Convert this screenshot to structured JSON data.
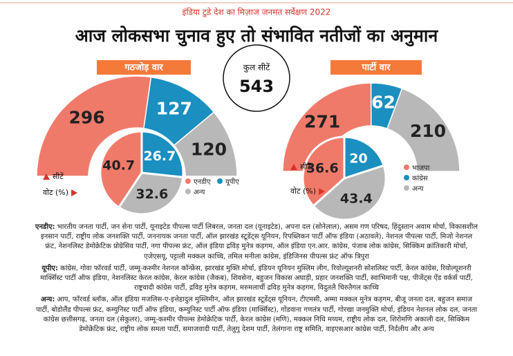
{
  "header": {
    "kicker": "इंडिया टुडे देश का मिज़ाज जनमत सर्वेक्षण 2022",
    "title": "आज लोकसभा चुनाव हुए तो संभावित नतीजों का अनुमान"
  },
  "total": {
    "label": "कुल सीटें",
    "value": 543
  },
  "chart_data": [
    {
      "type": "semicircle-donut",
      "title": "गठजोड़ वार",
      "categories": [
        "एनडीए",
        "यूपीए",
        "अन्य"
      ],
      "colors": [
        "#f07a6a",
        "#1a8fc0",
        "#b8b8b8"
      ],
      "series": [
        {
          "name": "सीटें",
          "values": [
            296,
            127,
            120
          ]
        },
        {
          "name": "वोट (%)",
          "values": [
            40.7,
            26.7,
            32.6
          ]
        }
      ]
    },
    {
      "type": "semicircle-donut",
      "title": "पार्टी वार",
      "categories": [
        "भाजपा",
        "कांग्रेस",
        "अन्य"
      ],
      "colors": [
        "#f07a6a",
        "#1a8fc0",
        "#b8b8b8"
      ],
      "series": [
        {
          "name": "सीटें",
          "values": [
            271,
            62,
            210
          ]
        },
        {
          "name": "वोट (%)",
          "values": [
            36.6,
            20,
            43.4
          ]
        }
      ]
    }
  ],
  "notes": [
    {
      "label": "एनडीए:",
      "text": "भारतीय जनता पार्टी, जन सेना पार्टी, यूनाइटेड पीपल्स पार्टी लिबरल, जनता दल (यूनाइटेड), अपना दल (सोनेलाल), असम गण परिषद, हिंदुस्तान अवाम मोर्चा, विकासशील इनसान पार्टी, राष्ट्रीय लोक जनशक्ति पार्टी, जननायक जनता पार्टी, ऑल झारखंड स्टूडेंट्स यूनियन, रिपब्लिकन पार्टी ऑफ इंडिया (अठावले), नेशनल पीपल्स पार्टी, मिजो नेशनल फ्रंट, नेशनलिस्ट डेमोक्रेटिक प्रोग्रेसिव पार्टी, नगा पीपल्स फ्रंट, ऑल इंडिया द्रविड़ मुनेत्र कड़गम, ऑल इंडिया एन.आर. कांग्रेस, पंजाब लोक कांग्रेस, सिक्किम क्रांतिकारी मोर्चा, एजेएसयू, पट्टाली मक्कल काच्चि, तमिल मनीला कांग्रेस, इंडिजिनस पीपल्स फ्रंट ऑफ त्रिपुरा"
    },
    {
      "label": "यूपीए:",
      "text": "कांग्रेस, गोवा फॉरवर्ड पार्टी, जम्मू-कश्मीर नेशनल कॉन्फ्रेंस, झारखंड मुक्ति मोर्चा, इंडियन यूनियन मुस्लिम लीग, रिवोल्यूशनरी सोशलिस्ट पार्टी, केरल कांग्रेस, रिवोल्यूशनरी मार्क्सिस्ट पार्टी ऑफ इंडिया, नेशनलिस्ट केरल कांग्रेस, केरल कांग्रेस (जैकब), शिवसेना, बहुजन विकास अघाड़ी, प्रहार जनशक्ति पार्टी, स्वाभिमानी पक्ष, पीजेंट्स ऐंड वर्कर्स पार्टी, राष्ट्रवादी कांग्रेस पार्टी, द्रविड़ मुनेत्र कड़गम, मरुमलार्ची द्रविड़ मुनेत्र कड़गम, विदुतलै चिरुतैगल काच्चि"
    },
    {
      "label": "अन्य:",
      "text": "आप, फॉरवर्ड ब्लॉक, ऑल इंडिया मजलिस-ए-इत्तेहादुल मुस्लिमीन, ऑल झारखंड स्टूडेंट्स यूनियन, टीएमसी, अम्मा मक्कल मुनेत्र कड़गम, बीजू जनता दल, बहुजन समाज पार्टी, बोडोलैंड पीपल्स फ्रंट, कम्युनिस्ट पार्टी ऑफ इंडिया, कम्युनिस्ट पार्टी ऑफ इंडिया (मार्क्सिस्ट), गोंडवाना गणतंत्र पार्टी, गोरखा जनमुक्ति मोर्चा, इंडियन नेशनल लोक दल, जनता कांग्रेस छत्तीसगढ़, जनता दल (सेकुलर), जम्मू-कश्मीर पीपल्स डेमोक्रेटिक पार्टी, केरल कांग्रेस (मणि), मक्कल निधि मय्यम, राष्ट्रीय लोक दल, शिरोमणि अकाली दल, सिक्किम डेमोक्रेटिक फ्रंट, राष्ट्रीय लोक समता पार्टी, समाजवादी पार्टी, तेलुगु देशम पार्टी, तेलंगाना राष्ट्र समिति, वाइएसआर कांग्रेस पार्टी, निर्दलीय और अन्य"
    }
  ]
}
